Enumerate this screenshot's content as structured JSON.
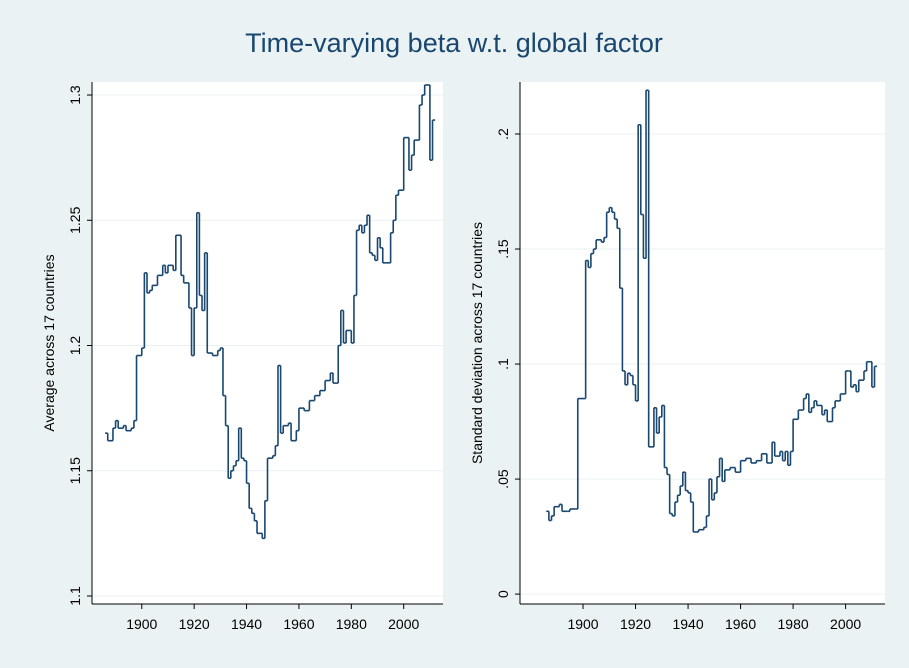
{
  "title": "Time-varying beta w.t. global factor",
  "chart_data": [
    {
      "type": "step",
      "ylabel": "Average across 17 countries",
      "color": "#1a476f",
      "grid": true,
      "xlim": [
        1881,
        2015
      ],
      "xticks": [
        1900,
        1920,
        1940,
        1960,
        1980,
        2000
      ],
      "ylim": [
        1.0968,
        1.3052
      ],
      "yticks": [
        1.1,
        1.15,
        1.2,
        1.25,
        1.3
      ],
      "x": [
        1886,
        1887,
        1889,
        1890,
        1891,
        1893,
        1894,
        1896,
        1897,
        1898,
        1900,
        1901,
        1902,
        1903,
        1904,
        1906,
        1908,
        1909,
        1910,
        1912,
        1913,
        1915,
        1916,
        1918,
        1919,
        1920,
        1921,
        1922,
        1923,
        1924,
        1925,
        1927,
        1929,
        1930,
        1931,
        1932,
        1933,
        1934,
        1935,
        1936,
        1937,
        1938,
        1939,
        1940,
        1941,
        1942,
        1943,
        1944,
        1946,
        1947,
        1948,
        1950,
        1951,
        1952,
        1953,
        1954,
        1956,
        1957,
        1959,
        1960,
        1962,
        1964,
        1966,
        1968,
        1970,
        1972,
        1973,
        1975,
        1976,
        1977,
        1978,
        1980,
        1981,
        1982,
        1983,
        1984,
        1985,
        1986,
        1987,
        1988,
        1989,
        1990,
        1991,
        1992,
        1995,
        1996,
        1997,
        1998,
        2000,
        2002,
        2003,
        2004,
        2006,
        2007,
        2008,
        2010,
        2011
      ],
      "values": [
        1.165,
        1.162,
        1.167,
        1.17,
        1.167,
        1.168,
        1.166,
        1.167,
        1.17,
        1.196,
        1.199,
        1.229,
        1.221,
        1.222,
        1.224,
        1.228,
        1.232,
        1.229,
        1.232,
        1.23,
        1.244,
        1.228,
        1.225,
        1.215,
        1.196,
        1.215,
        1.253,
        1.22,
        1.214,
        1.237,
        1.197,
        1.196,
        1.198,
        1.199,
        1.18,
        1.168,
        1.147,
        1.15,
        1.152,
        1.154,
        1.167,
        1.155,
        1.154,
        1.145,
        1.135,
        1.133,
        1.13,
        1.125,
        1.123,
        1.138,
        1.155,
        1.156,
        1.16,
        1.192,
        1.165,
        1.168,
        1.169,
        1.162,
        1.166,
        1.175,
        1.174,
        1.178,
        1.18,
        1.182,
        1.186,
        1.189,
        1.185,
        1.2,
        1.214,
        1.201,
        1.206,
        1.201,
        1.22,
        1.246,
        1.248,
        1.245,
        1.248,
        1.252,
        1.237,
        1.236,
        1.234,
        1.243,
        1.239,
        1.233,
        1.245,
        1.25,
        1.26,
        1.262,
        1.283,
        1.27,
        1.276,
        1.282,
        1.296,
        1.3,
        1.304,
        1.274,
        1.29
      ]
    },
    {
      "type": "step",
      "ylabel": "Standard deviation across 17 countries",
      "color": "#1a476f",
      "grid": true,
      "xlim": [
        1876,
        2015
      ],
      "xticks": [
        1900,
        1920,
        1940,
        1960,
        1980,
        2000
      ],
      "ylim": [
        -0.0043,
        0.2226
      ],
      "yticks": [
        0,
        {
          "value": 0.05,
          "label": ".05"
        },
        {
          "value": 0.1,
          "label": ".1"
        },
        {
          "value": 0.15,
          "label": ".15"
        },
        {
          "value": 0.2,
          "label": ".2"
        }
      ],
      "x": [
        1886,
        1887,
        1888,
        1889,
        1891,
        1892,
        1894,
        1895,
        1897,
        1898,
        1901,
        1902,
        1903,
        1904,
        1905,
        1907,
        1908,
        1909,
        1910,
        1911,
        1912,
        1913,
        1914,
        1915,
        1916,
        1917,
        1918,
        1919,
        1920,
        1921,
        1922,
        1923,
        1924,
        1925,
        1927,
        1928,
        1929,
        1930,
        1931,
        1932,
        1933,
        1934,
        1935,
        1936,
        1937,
        1938,
        1939,
        1940,
        1941,
        1942,
        1944,
        1946,
        1947,
        1948,
        1949,
        1950,
        1951,
        1952,
        1953,
        1954,
        1956,
        1958,
        1960,
        1962,
        1964,
        1966,
        1968,
        1970,
        1972,
        1973,
        1975,
        1976,
        1977,
        1978,
        1979,
        1980,
        1982,
        1984,
        1985,
        1986,
        1987,
        1988,
        1989,
        1991,
        1992,
        1993,
        1995,
        1996,
        1998,
        2000,
        2001,
        2002,
        2003,
        2004,
        2005,
        2007,
        2008,
        2009,
        2010,
        2011
      ],
      "values": [
        0.036,
        0.032,
        0.034,
        0.038,
        0.039,
        0.036,
        0.036,
        0.037,
        0.037,
        0.085,
        0.145,
        0.142,
        0.148,
        0.15,
        0.154,
        0.153,
        0.155,
        0.166,
        0.168,
        0.166,
        0.163,
        0.159,
        0.133,
        0.097,
        0.091,
        0.096,
        0.095,
        0.091,
        0.084,
        0.204,
        0.165,
        0.146,
        0.219,
        0.064,
        0.081,
        0.07,
        0.077,
        0.082,
        0.055,
        0.052,
        0.035,
        0.034,
        0.04,
        0.043,
        0.047,
        0.053,
        0.045,
        0.044,
        0.04,
        0.027,
        0.028,
        0.029,
        0.034,
        0.05,
        0.041,
        0.044,
        0.051,
        0.059,
        0.049,
        0.054,
        0.055,
        0.053,
        0.058,
        0.059,
        0.057,
        0.058,
        0.061,
        0.057,
        0.066,
        0.06,
        0.062,
        0.058,
        0.062,
        0.056,
        0.062,
        0.076,
        0.08,
        0.085,
        0.087,
        0.079,
        0.081,
        0.084,
        0.082,
        0.078,
        0.08,
        0.075,
        0.081,
        0.084,
        0.087,
        0.097,
        0.097,
        0.09,
        0.091,
        0.088,
        0.093,
        0.097,
        0.101,
        0.101,
        0.09,
        0.099
      ]
    }
  ]
}
